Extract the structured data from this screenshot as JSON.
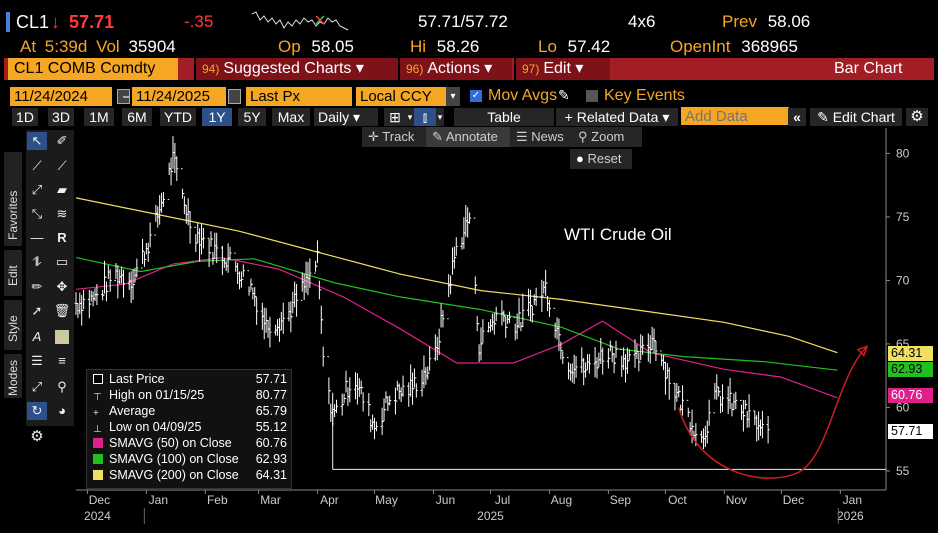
{
  "quote": {
    "ticker": "CL1",
    "arrow": "↓",
    "last": "57.71",
    "change": "-.35",
    "bid_ask": "57.71/57.72",
    "size": "4x6",
    "prev_label": "Prev",
    "prev": "58.06",
    "at_label": "At",
    "time": "5:39d",
    "vol_label": "Vol",
    "vol": "35904",
    "op_label": "Op",
    "op": "58.05",
    "hi_label": "Hi",
    "hi": "58.26",
    "lo_label": "Lo",
    "lo": "57.42",
    "openint_label": "OpenInt",
    "openint": "368965"
  },
  "toolbar": {
    "security": "CL1 COMB Comdty",
    "menu1_num": "94)",
    "menu1": "Suggested Charts ▾",
    "menu2_num": "96)",
    "menu2": "Actions ▾",
    "menu3_num": "97)",
    "menu3": "Edit ▾",
    "chart_type": "Bar Chart"
  },
  "settings": {
    "start_date": "11/24/2024",
    "end_date": "11/24/2025",
    "price_field": "Last Px",
    "currency": "Local CCY",
    "mov_avgs": "Mov Avgs",
    "key_events": "Key Events"
  },
  "periods": [
    "1D",
    "3D",
    "1M",
    "6M",
    "YTD",
    "1Y",
    "5Y",
    "Max"
  ],
  "selected_period": "1Y",
  "controls": {
    "frequency": "Daily",
    "table": "Table",
    "related": "+ Related Data ▾",
    "add_data_placeholder": "Add Data",
    "edit_chart": "Edit Chart",
    "track": "Track",
    "annotate": "Annotate",
    "news": "News",
    "zoom": "Zoom",
    "reset": "Reset"
  },
  "side_tabs": [
    "Favorites",
    "Edit",
    "Style",
    "Modes"
  ],
  "colors": {
    "price": "#ffffff",
    "sma50": "#e0208a",
    "sma100": "#20c020",
    "sma200": "#f0e060",
    "accent": "#f5a623",
    "menu_red": "#a31d25",
    "projection": "#cc2020"
  },
  "legend": [
    {
      "label": "Last Price",
      "value": "57.71",
      "swatch": "white-box"
    },
    {
      "label": "High on 01/15/25",
      "value": "80.77",
      "swatch": "high-marker"
    },
    {
      "label": "Average",
      "value": "65.79",
      "swatch": "avg-marker"
    },
    {
      "label": "Low on 04/09/25",
      "value": "55.12",
      "swatch": "low-marker"
    },
    {
      "label": "SMAVG (50)  on Close",
      "value": "60.76",
      "swatch": "#e0208a"
    },
    {
      "label": "SMAVG (100)  on Close",
      "value": "62.93",
      "swatch": "#20c020"
    },
    {
      "label": "SMAVG (200)  on Close",
      "value": "64.31",
      "swatch": "#f0e060"
    }
  ],
  "chart_data": {
    "type": "line",
    "title": "WTI Crude Oil",
    "ylim": [
      53.5,
      82
    ],
    "yticks": [
      55,
      60,
      65,
      70,
      75,
      80
    ],
    "x_months": [
      "Dec",
      "Jan",
      "Feb",
      "Mar",
      "Apr",
      "May",
      "Jun",
      "Jul",
      "Aug",
      "Sep",
      "Oct",
      "Nov",
      "Dec",
      "Jan"
    ],
    "x_years": [
      "2024",
      "2025",
      "2026"
    ],
    "grid": false,
    "price_bars_monthly": [
      {
        "x": "2024-11-25",
        "y": 68.2
      },
      {
        "x": "2024-12-05",
        "y": 68.6
      },
      {
        "x": "2024-12-15",
        "y": 70.5
      },
      {
        "x": "2024-12-25",
        "y": 70.1
      },
      {
        "x": "2025-01-05",
        "y": 74.0
      },
      {
        "x": "2025-01-15",
        "y": 79.5
      },
      {
        "x": "2025-01-25",
        "y": 74.0
      },
      {
        "x": "2025-02-05",
        "y": 72.5
      },
      {
        "x": "2025-02-15",
        "y": 71.5
      },
      {
        "x": "2025-02-25",
        "y": 69.5
      },
      {
        "x": "2025-03-05",
        "y": 66.5
      },
      {
        "x": "2025-03-15",
        "y": 67.0
      },
      {
        "x": "2025-03-25",
        "y": 69.5
      },
      {
        "x": "2025-04-01",
        "y": 71.5
      },
      {
        "x": "2025-04-05",
        "y": 61.5
      },
      {
        "x": "2025-04-10",
        "y": 59.5
      },
      {
        "x": "2025-04-20",
        "y": 62.5
      },
      {
        "x": "2025-05-01",
        "y": 58.5
      },
      {
        "x": "2025-05-10",
        "y": 61.0
      },
      {
        "x": "2025-05-20",
        "y": 61.5
      },
      {
        "x": "2025-06-01",
        "y": 63.5
      },
      {
        "x": "2025-06-13",
        "y": 72.5
      },
      {
        "x": "2025-06-20",
        "y": 75.0
      },
      {
        "x": "2025-06-25",
        "y": 65.0
      },
      {
        "x": "2025-07-05",
        "y": 67.5
      },
      {
        "x": "2025-07-15",
        "y": 66.5
      },
      {
        "x": "2025-07-30",
        "y": 69.5
      },
      {
        "x": "2025-08-10",
        "y": 63.5
      },
      {
        "x": "2025-08-20",
        "y": 63.0
      },
      {
        "x": "2025-09-01",
        "y": 64.5
      },
      {
        "x": "2025-09-15",
        "y": 63.5
      },
      {
        "x": "2025-09-25",
        "y": 65.5
      },
      {
        "x": "2025-10-05",
        "y": 61.5
      },
      {
        "x": "2025-10-20",
        "y": 57.5
      },
      {
        "x": "2025-10-28",
        "y": 61.0
      },
      {
        "x": "2025-11-10",
        "y": 59.8
      },
      {
        "x": "2025-11-24",
        "y": 57.71
      }
    ],
    "series": [
      {
        "name": "SMAVG (50)",
        "last": 60.76,
        "values": [
          [
            0,
            69.3
          ],
          [
            0.06,
            69.7
          ],
          [
            0.12,
            71.3
          ],
          [
            0.18,
            71.8
          ],
          [
            0.25,
            70.9
          ],
          [
            0.33,
            68.7
          ],
          [
            0.4,
            66.2
          ],
          [
            0.47,
            63.5
          ],
          [
            0.54,
            63.5
          ],
          [
            0.6,
            65.0
          ],
          [
            0.65,
            66.8
          ],
          [
            0.71,
            64.3
          ],
          [
            0.8,
            63.0
          ],
          [
            0.87,
            62.4
          ],
          [
            0.94,
            60.76
          ]
        ]
      },
      {
        "name": "SMAVG (100)",
        "last": 62.93,
        "values": [
          [
            0,
            71.8
          ],
          [
            0.08,
            70.7
          ],
          [
            0.15,
            71.5
          ],
          [
            0.22,
            71.7
          ],
          [
            0.32,
            69.8
          ],
          [
            0.4,
            68.7
          ],
          [
            0.5,
            67.7
          ],
          [
            0.6,
            66.3
          ],
          [
            0.67,
            64.6
          ],
          [
            0.75,
            64.0
          ],
          [
            0.85,
            63.6
          ],
          [
            0.94,
            62.93
          ]
        ]
      },
      {
        "name": "SMAVG (200)",
        "last": 64.31,
        "values": [
          [
            0,
            76.5
          ],
          [
            0.1,
            75.2
          ],
          [
            0.2,
            73.9
          ],
          [
            0.3,
            72.2
          ],
          [
            0.4,
            70.5
          ],
          [
            0.5,
            69.2
          ],
          [
            0.6,
            68.5
          ],
          [
            0.7,
            67.6
          ],
          [
            0.8,
            66.7
          ],
          [
            0.88,
            65.6
          ],
          [
            0.94,
            64.31
          ]
        ]
      }
    ],
    "last_price": 57.71,
    "low_line": 55.12
  }
}
